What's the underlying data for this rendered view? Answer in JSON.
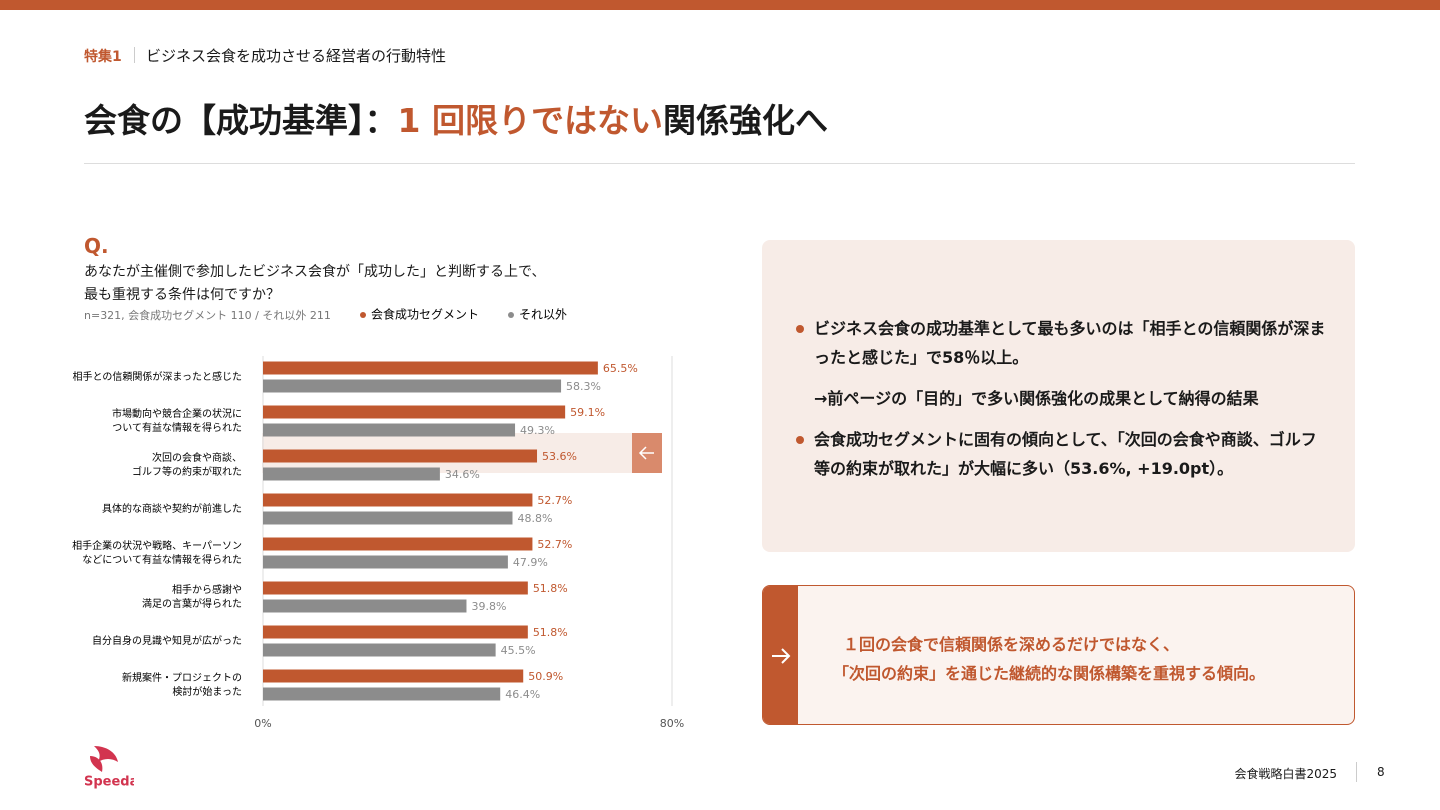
{
  "header": {
    "label": "特集1",
    "subtitle": "ビジネス会食を成功させる経営者の行動特性"
  },
  "title": [
    "会食の【成功基準】：",
    "1 回限りではない",
    "関係強化へ"
  ],
  "question": {
    "mark": "Q.",
    "lines": [
      "あなたが主催側で参加したビジネス会食が「成功した」と判断する上で、",
      "最も重視する条件は何ですか？"
    ]
  },
  "chart_data": {
    "type": "bar",
    "orientation": "horizontal",
    "note": "n=321, 会食成功セグメント 110 / それ以外 211",
    "categories": [
      [
        "相手との信頼関係が深まったと感じた"
      ],
      [
        "市場動向や競合企業の状況に",
        "ついて有益な情報を得られた"
      ],
      [
        "次回の会食や商談、",
        "ゴルフ等の約束が取れた"
      ],
      [
        "具体的な商談や契約が前進した"
      ],
      [
        "相手企業の状況や戦略、キーパーソン",
        "などについて有益な情報を得られた"
      ],
      [
        "相手から感謝や",
        "満足の言葉が得られた"
      ],
      [
        "自分自身の見識や知見が広がった"
      ],
      [
        "新規案件・プロジェクトの",
        "検討が始まった"
      ]
    ],
    "series": [
      {
        "name": "会食成功セグメント",
        "color": "#c0582f",
        "values": [
          65.5,
          59.1,
          53.6,
          52.7,
          52.7,
          51.8,
          51.8,
          50.9
        ],
        "value_labels": [
          "65.5%",
          "59.1%",
          "53.6%",
          "52.7%",
          "52.7%",
          "51.8%",
          "51.8%",
          "50.9%"
        ]
      },
      {
        "name": "それ以外",
        "color": "#8c8c8c",
        "values": [
          58.3,
          49.3,
          34.6,
          48.8,
          47.9,
          39.8,
          45.5,
          46.4
        ],
        "value_labels": [
          "58.3%",
          "49.3%",
          "34.6%",
          "48.8%",
          "47.9%",
          "39.8%",
          "45.5%",
          "46.4%"
        ]
      }
    ],
    "xlim": [
      0,
      80
    ],
    "xticks": [
      {
        "value": 0,
        "label": "0%"
      },
      {
        "value": 80,
        "label": "80%"
      }
    ]
  },
  "findings": {
    "bullets": [
      "ビジネス会食の成功基準として最も多いのは「相手との信頼関係が深まったと感じた」で58％以上。",
      "会食成功セグメントに固有の傾向として、「次回の会食や商談、ゴルフ等の約束が取れた」が大幅に多い（53.6%, +19.0pt）。"
    ],
    "arrow_note": "→前ページの「目的」で多い関係強化の成果として納得の結果"
  },
  "conclusion": [
    "１回の会食で信頼関係を深めるだけではなく、",
    "「次回の約束」を通じた継続的な関係構築を重視する傾向。"
  ],
  "logo": "Speeda",
  "footer": {
    "publication": "会食戦略白書2025",
    "page": "8"
  }
}
